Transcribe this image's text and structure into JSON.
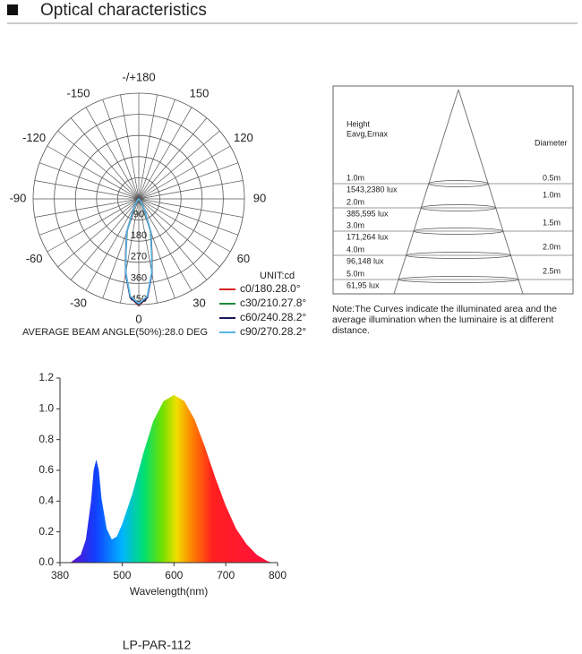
{
  "header": {
    "title": "Optical characteristics"
  },
  "chart_data": [
    {
      "type": "polar",
      "unit": "UNIT:cd",
      "caption": "AVERAGE BEAM ANGLE(50%):28.0 DEG",
      "angle_ticks": [
        {
          "value": 180,
          "label": "-/+180"
        },
        -150,
        150,
        -120,
        120,
        -90,
        90,
        -60,
        60,
        -30,
        30,
        0
      ],
      "ylim": [
        0,
        450
      ],
      "yticks": [
        90,
        180,
        270,
        360,
        450
      ],
      "x": [
        -40,
        -30,
        -20,
        -14,
        -10,
        -5,
        0,
        5,
        10,
        14,
        20,
        30,
        40
      ],
      "series": [
        {
          "name": "c0/180.28.0°",
          "color": "#d62020",
          "values": [
            10,
            40,
            150,
            228,
            320,
            420,
            455,
            420,
            320,
            228,
            150,
            40,
            10
          ]
        },
        {
          "name": "c30/210.27.8°",
          "color": "#1f8a3c",
          "values": [
            8,
            38,
            145,
            224,
            318,
            418,
            452,
            418,
            318,
            224,
            145,
            38,
            8
          ]
        },
        {
          "name": "c60/240.28.2°",
          "color": "#1a1a5a",
          "values": [
            10,
            42,
            152,
            226,
            322,
            422,
            450,
            422,
            322,
            226,
            152,
            42,
            10
          ]
        },
        {
          "name": "c90/270.28.2°",
          "color": "#5ab4e6",
          "values": [
            10,
            42,
            150,
            224,
            318,
            416,
            446,
            416,
            318,
            224,
            150,
            42,
            10
          ]
        }
      ]
    },
    {
      "type": "area",
      "xlabel": "Wavelength(nm)",
      "x": [
        400,
        420,
        430,
        440,
        445,
        450,
        455,
        460,
        470,
        480,
        490,
        500,
        520,
        540,
        560,
        580,
        600,
        620,
        640,
        660,
        680,
        700,
        720,
        740,
        760,
        780,
        790
      ],
      "values": [
        0,
        0.05,
        0.15,
        0.4,
        0.6,
        0.67,
        0.6,
        0.42,
        0.22,
        0.15,
        0.17,
        0.25,
        0.45,
        0.7,
        0.92,
        1.05,
        1.09,
        1.05,
        0.93,
        0.75,
        0.55,
        0.37,
        0.22,
        0.12,
        0.05,
        0.01,
        0
      ],
      "xlim": [
        380,
        800
      ],
      "xticks": [
        380,
        500,
        600,
        700,
        800
      ],
      "ylim": [
        0,
        1.2
      ],
      "yticks": [
        {
          "value": 0,
          "label": "0.0"
        },
        0.2,
        0.4,
        0.6,
        0.8,
        {
          "value": 1,
          "label": "1.0"
        },
        1.2
      ]
    }
  ],
  "cone_diagram": {
    "height_header": "Height",
    "lux_header": "Eavg,Emax",
    "diameter_header": "Diameter",
    "rows": [
      {
        "height": "1.0m",
        "lux": "1543,2380 lux",
        "diameter": "0.5m"
      },
      {
        "height": "2.0m",
        "lux": "385,595 lux",
        "diameter": "1.0m"
      },
      {
        "height": "3.0m",
        "lux": "171,264 lux",
        "diameter": "1.5m"
      },
      {
        "height": "4.0m",
        "lux": "96,148 lux",
        "diameter": "2.0m"
      },
      {
        "height": "5.0m",
        "lux": "61,95 lux",
        "diameter": "2.5m"
      }
    ],
    "note": "Note:The Curves indicate the illuminated area and the average illumination when the luminaire is at different distance."
  },
  "model": "LP-PAR-112"
}
